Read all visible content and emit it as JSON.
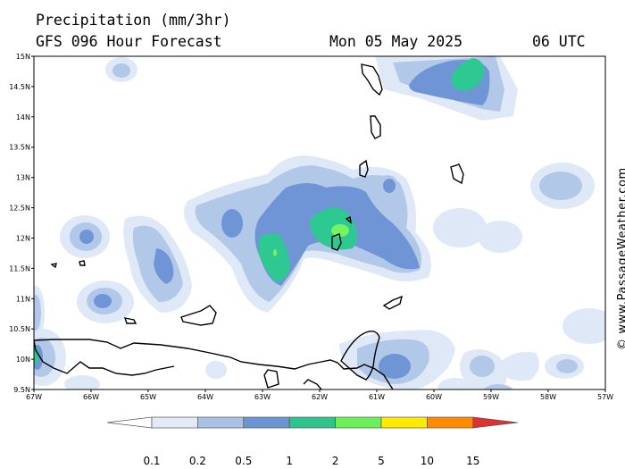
{
  "header": {
    "title": "Precipitation (mm/3hr)",
    "subtitle": "GFS 096 Hour Forecast",
    "date": "Mon 05 May 2025",
    "time": "06 UTC"
  },
  "map": {
    "lat_labels": [
      "15N",
      "14.5N",
      "14N",
      "13.5N",
      "13N",
      "12.5N",
      "12N",
      "11.5N",
      "11N",
      "10.5N",
      "10N",
      "9.5N"
    ],
    "lon_labels": [
      "67W",
      "66W",
      "65W",
      "64W",
      "63W",
      "62W",
      "61W",
      "60W",
      "59W",
      "58W",
      "57W"
    ],
    "lat_range": [
      9.5,
      15
    ],
    "lon_range": [
      -67,
      -57
    ]
  },
  "watermark": "© www.PassageWeather.com",
  "legend": {
    "labels": [
      "0.1",
      "0.2",
      "0.5",
      "1",
      "2",
      "5",
      "10",
      "15"
    ],
    "colors": [
      "#ffffff",
      "#e4eaf6",
      "#a9c1e4",
      "#6b94d4",
      "#2fc38e",
      "#6cf05a",
      "#ffea00",
      "#ff8c00",
      "#e03030"
    ]
  },
  "colors": {
    "lvl1": "#dfe8f6",
    "lvl2": "#b1c8e8",
    "lvl3": "#6f95d6",
    "lvl4": "#2ec892",
    "lvl5": "#76f35f",
    "coast": "#000000"
  }
}
